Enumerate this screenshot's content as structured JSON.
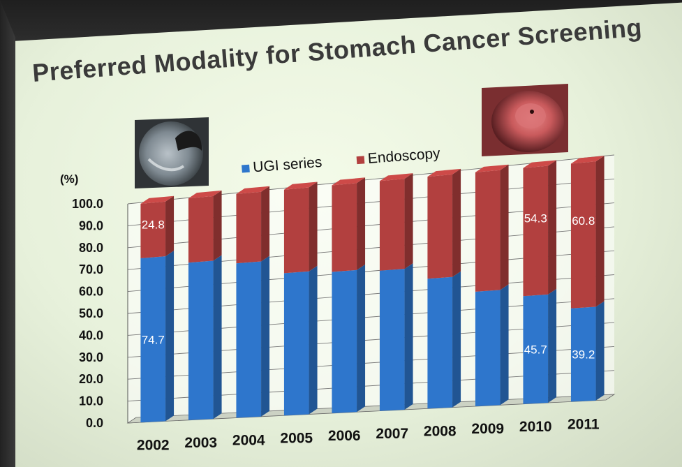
{
  "slide": {
    "title": "Preferred Modality for Stomach Cancer Screening"
  },
  "images": {
    "left": "ugi-xray-image",
    "right": "endoscopy-image"
  },
  "chart_data": {
    "type": "bar",
    "stacked": true,
    "title": "Preferred Modality for Stomach Cancer Screening",
    "ylabel": "(%)",
    "xlabel": "",
    "ylim": [
      0,
      100
    ],
    "yticks": [
      "0.0",
      "10.0",
      "20.0",
      "30.0",
      "40.0",
      "50.0",
      "60.0",
      "70.0",
      "80.0",
      "90.0",
      "100.0"
    ],
    "categories": [
      "2002",
      "2003",
      "2004",
      "2005",
      "2006",
      "2007",
      "2008",
      "2009",
      "2010",
      "2011"
    ],
    "series": [
      {
        "name": "UGI series",
        "color": "#2e76cc",
        "values": [
          74.7,
          71,
          69,
          63,
          62,
          61,
          56,
          49,
          45.7,
          39.2
        ]
      },
      {
        "name": "Endoscopy",
        "color": "#b2403f",
        "values": [
          24.8,
          29,
          31,
          37,
          38,
          39,
          44,
          51,
          54.3,
          60.8
        ]
      }
    ],
    "data_labels": [
      {
        "category": "2002",
        "series": "UGI series",
        "text": "74.7"
      },
      {
        "category": "2002",
        "series": "Endoscopy",
        "text": "24.8"
      },
      {
        "category": "2010",
        "series": "UGI series",
        "text": "45.7"
      },
      {
        "category": "2010",
        "series": "Endoscopy",
        "text": "54.3"
      },
      {
        "category": "2011",
        "series": "UGI series",
        "text": "39.2"
      },
      {
        "category": "2011",
        "series": "Endoscopy",
        "text": "60.8"
      }
    ],
    "legend": {
      "position": "top"
    },
    "grid": true,
    "style": "3d"
  }
}
